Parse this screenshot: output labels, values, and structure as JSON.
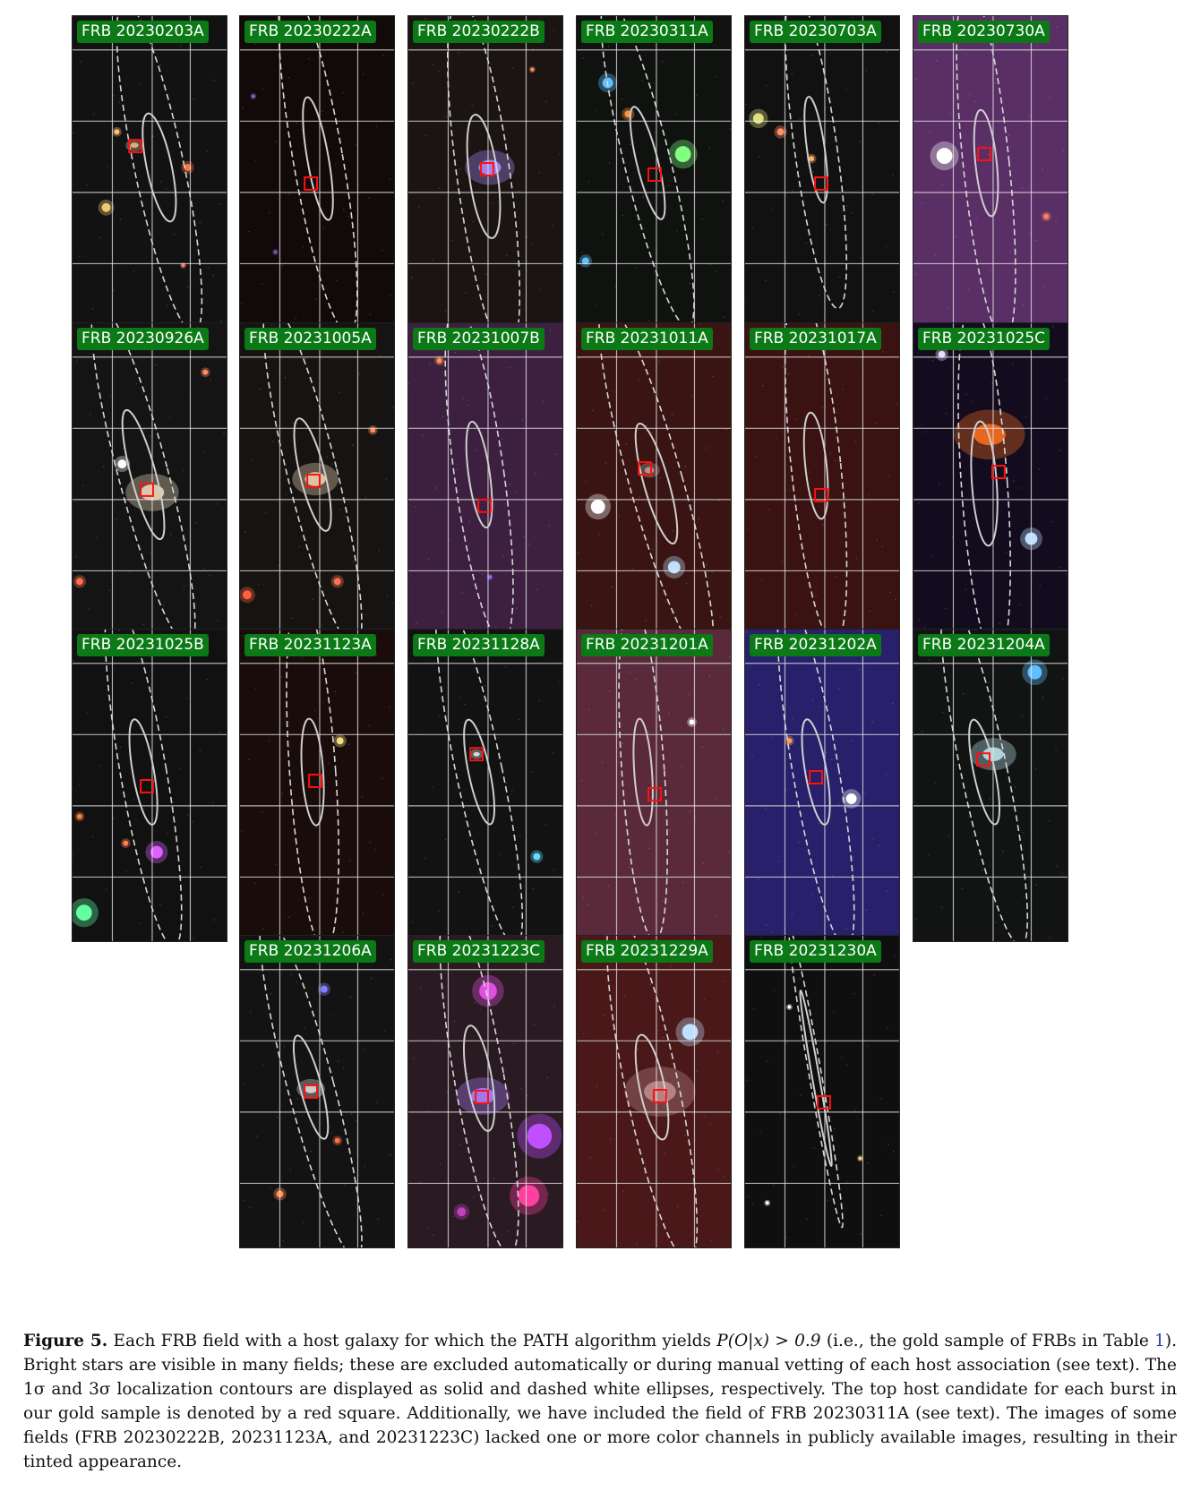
{
  "figure": {
    "panels": [
      {
        "label": "FRB 20230203A",
        "bg": "#121212"
      },
      {
        "label": "FRB 20230222A",
        "bg": "#120a08"
      },
      {
        "label": "FRB 20230222B",
        "bg": "#1a1512"
      },
      {
        "label": "FRB 20230311A",
        "bg": "#101210"
      },
      {
        "label": "FRB 20230703A",
        "bg": "#111111"
      },
      {
        "label": "FRB 20230730A",
        "bg": "#5a2f66"
      },
      {
        "label": "FRB 20230926A",
        "bg": "#141414"
      },
      {
        "label": "FRB 20231005A",
        "bg": "#161412"
      },
      {
        "label": "FRB 20231007B",
        "bg": "#3d2040"
      },
      {
        "label": "FRB 20231011A",
        "bg": "#3a1412"
      },
      {
        "label": "FRB 20231017A",
        "bg": "#3a1212"
      },
      {
        "label": "FRB 20231025C",
        "bg": "#120c1e"
      },
      {
        "label": "FRB 20231025B",
        "bg": "#111111"
      },
      {
        "label": "FRB 20231123A",
        "bg": "#1a0c0a"
      },
      {
        "label": "FRB 20231128A",
        "bg": "#121212"
      },
      {
        "label": "FRB 20231201A",
        "bg": "#5a2a3a"
      },
      {
        "label": "FRB 20231202A",
        "bg": "#28206a"
      },
      {
        "label": "FRB 20231204A",
        "bg": "#121414"
      },
      {
        "label": "FRB 20231206A",
        "bg": "#131313"
      },
      {
        "label": "FRB 20231223C",
        "bg": "#2a1a22"
      },
      {
        "label": "FRB 20231229A",
        "bg": "#4a1818"
      },
      {
        "label": "FRB 20231230A",
        "bg": "#0f0f0f"
      }
    ]
  },
  "caption": {
    "label": "Figure 5.",
    "t1": " Each FRB field with a host galaxy for which the PATH algorithm yields ",
    "math1": "P(O|x) > 0.9",
    "t2": " (i.e., the gold sample of FRBs in Table ",
    "ref": "1",
    "t3": "). Bright stars are visible in many fields; these are excluded automatically or during manual vetting of each host association (see text). The 1σ and 3σ localization contours are displayed as solid and dashed white ellipses, respectively. The top host candidate for each burst in our gold sample is denoted by a red square. Additionally, we have included the field of FRB 20230311A (see text). The images of some fields (FRB 20230222B, 20231123A, and 20231223C) lacked one or more color channels in publicly available images, resulting in their tinted appearance."
  }
}
